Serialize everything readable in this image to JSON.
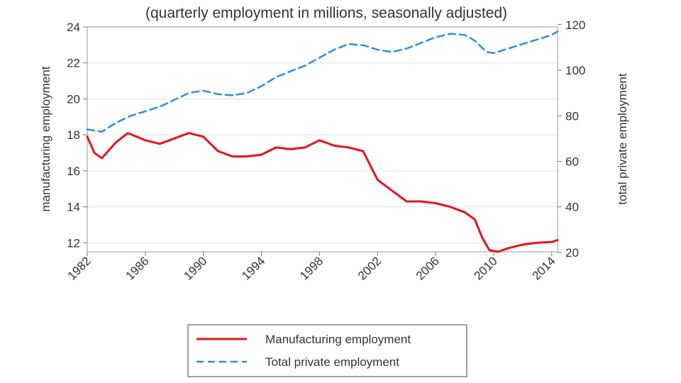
{
  "chart_data": {
    "type": "line",
    "title": "(quarterly employment in millions, seasonally adjusted)",
    "xlabel": "",
    "ylabel_left": "manufacturing employment",
    "ylabel_right": "total private employment",
    "x_ticks": [
      "1982",
      "1986",
      "1990",
      "1994",
      "1998",
      "2002",
      "2006",
      "2010",
      "2014"
    ],
    "x_tick_values": [
      1982,
      1986,
      1990,
      1994,
      1998,
      2002,
      2006,
      2010,
      2014
    ],
    "xlim": [
      1982,
      2014.4
    ],
    "y_left_ticks": [
      "12",
      "14",
      "16",
      "18",
      "20",
      "22",
      "24"
    ],
    "y_left_tick_values": [
      12,
      14,
      16,
      18,
      20,
      22,
      24
    ],
    "ylim_left": [
      11.5,
      24
    ],
    "y_right_ticks": [
      "20",
      "40",
      "60",
      "80",
      "100",
      "120"
    ],
    "y_right_tick_values": [
      20,
      40,
      60,
      80,
      100,
      120
    ],
    "ylim_right": [
      20.3,
      119
    ],
    "grid": true,
    "legend_placement": "bottom",
    "series": [
      {
        "name": "Manufacturing employment",
        "axis": "left",
        "color": "#e8131b",
        "style": "solid",
        "x": [
          1982,
          1982.5,
          1983,
          1984,
          1984.8,
          1986,
          1987,
          1988,
          1989,
          1990,
          1991,
          1992,
          1993,
          1994,
          1995,
          1996,
          1997,
          1998,
          1999,
          2000,
          2001,
          2002,
          2003,
          2004,
          2005,
          2006,
          2007,
          2008,
          2008.7,
          2009.2,
          2009.7,
          2010.3,
          2011,
          2012,
          2013,
          2014,
          2014.4
        ],
        "values": [
          17.9,
          17.0,
          16.7,
          17.6,
          18.1,
          17.7,
          17.5,
          17.8,
          18.1,
          17.9,
          17.1,
          16.8,
          16.8,
          16.9,
          17.3,
          17.2,
          17.3,
          17.7,
          17.4,
          17.3,
          17.1,
          15.5,
          14.9,
          14.3,
          14.3,
          14.2,
          14.0,
          13.7,
          13.3,
          12.3,
          11.6,
          11.5,
          11.7,
          11.9,
          12.0,
          12.05,
          12.15
        ]
      },
      {
        "name": "Total private employment",
        "axis": "right",
        "color": "#2b8fe0",
        "style": "dashed",
        "x": [
          1982,
          1982.5,
          1983,
          1984,
          1985,
          1986,
          1987,
          1988,
          1989,
          1990,
          1991,
          1992,
          1993,
          1994,
          1995,
          1996,
          1997,
          1998,
          1999,
          2000,
          2001,
          2002,
          2003,
          2004,
          2005,
          2006,
          2007,
          2008,
          2008.7,
          2009.5,
          2010,
          2011,
          2012,
          2013,
          2014,
          2014.4
        ],
        "values": [
          74.0,
          73.5,
          73.0,
          77.0,
          80.0,
          82.0,
          84.0,
          87.0,
          90.0,
          91.0,
          89.5,
          89.0,
          90.0,
          93.0,
          97.0,
          99.5,
          102.0,
          105.5,
          109.0,
          111.5,
          111.0,
          109.0,
          108.0,
          109.5,
          112.0,
          114.5,
          116.0,
          115.5,
          113.0,
          108.0,
          107.5,
          109.5,
          111.5,
          113.5,
          115.5,
          117.0
        ]
      }
    ]
  }
}
